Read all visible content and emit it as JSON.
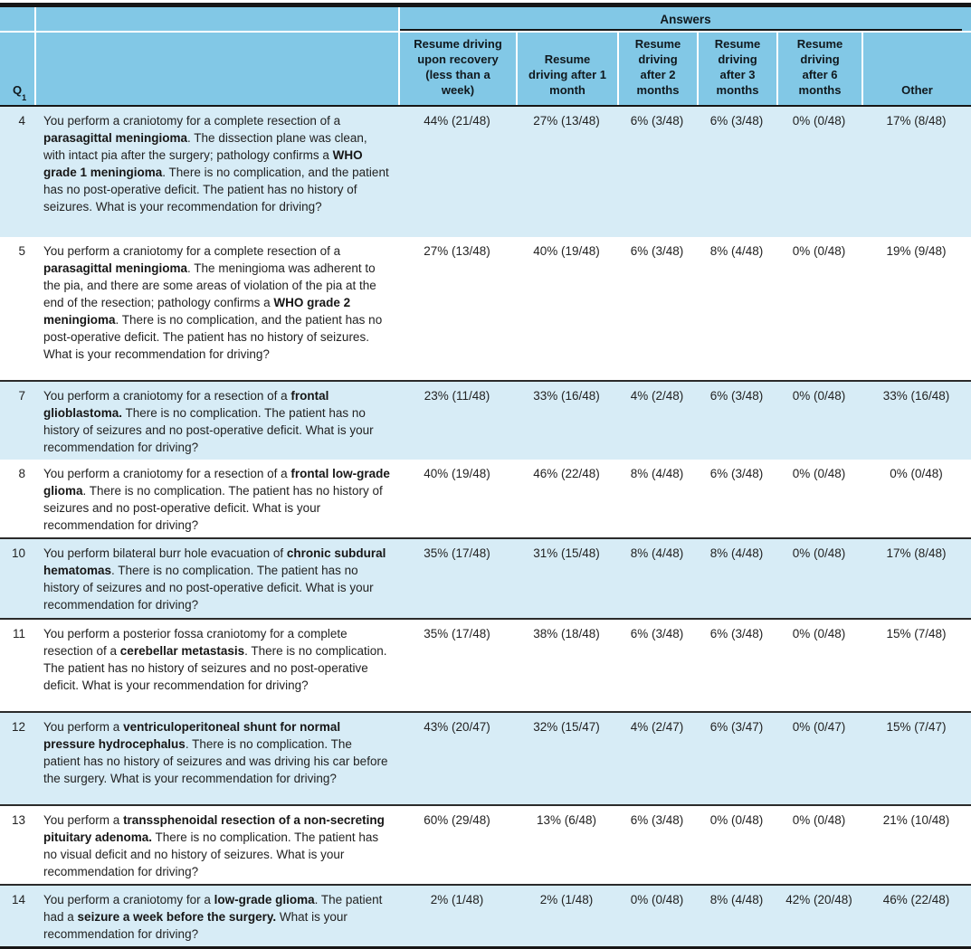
{
  "colors": {
    "header_blue": "#82c8e6",
    "row_blue": "#d7ecf6",
    "rule_dark": "#161616"
  },
  "table": {
    "answers_label": "Answers",
    "q_header": {
      "label": "Q",
      "sup": "1"
    },
    "columns": [
      "Resume driving upon recovery (less than a week)",
      "Resume driving after 1 month",
      "Resume driving after 2 months",
      "Resume driving after 3 months",
      "Resume driving after 6 months",
      "Other"
    ],
    "rows": [
      {
        "q": "4",
        "segments": [
          {
            "text": "You perform a craniotomy for a complete resection of a "
          },
          {
            "text": "parasagittal meningioma",
            "bold": true
          },
          {
            "text": ". The dissection plane was clean, with intact pia after the surgery; pathology confirms a "
          },
          {
            "text": "WHO grade 1 meningioma",
            "bold": true
          },
          {
            "text": ". There is no complication, and the patient has no post-operative deficit. The patient has no history of seizures. What is your recommendation for driving?"
          }
        ],
        "values": [
          "44% (21/48)",
          "27% (13/48)",
          "6% (3/48)",
          "6% (3/48)",
          "0% (0/48)",
          "17% (8/48)"
        ]
      },
      {
        "q": "5",
        "segments": [
          {
            "text": "You perform a craniotomy for a complete resection of a "
          },
          {
            "text": "parasagittal meningioma",
            "bold": true
          },
          {
            "text": ". The meningioma was adherent to the pia, and there are some areas of violation of the pia at the end of the resection; pathology confirms a "
          },
          {
            "text": "WHO grade 2 meningioma",
            "bold": true
          },
          {
            "text": ". There is no complication, and the patient has no post-operative deficit. The patient has no history of seizures. What is your recommendation for driving?"
          }
        ],
        "values": [
          "27% (13/48)",
          "40% (19/48)",
          "6% (3/48)",
          "8% (4/48)",
          "0% (0/48)",
          "19% (9/48)"
        ]
      },
      {
        "q": "7",
        "segments": [
          {
            "text": "You perform a craniotomy for a resection of a "
          },
          {
            "text": "frontal glioblastoma.",
            "bold": true
          },
          {
            "text": " There is no complication. The patient has no history of seizures and no post-operative deficit. What is your recommendation for driving?"
          }
        ],
        "values": [
          "23% (11/48)",
          "33% (16/48)",
          "4% (2/48)",
          "6% (3/48)",
          "0% (0/48)",
          "33% (16/48)"
        ]
      },
      {
        "q": "8",
        "segments": [
          {
            "text": "You perform a craniotomy for a resection of a "
          },
          {
            "text": "frontal low-grade glioma",
            "bold": true
          },
          {
            "text": ". There is no complication. The patient has no history of seizures and no post-operative deficit. What is your recommendation for driving?"
          }
        ],
        "values": [
          "40% (19/48)",
          "46% (22/48)",
          "8% (4/48)",
          "6% (3/48)",
          "0% (0/48)",
          "0% (0/48)"
        ]
      },
      {
        "q": "10",
        "segments": [
          {
            "text": "You perform bilateral burr hole evacuation of "
          },
          {
            "text": "chronic subdural hematomas",
            "bold": true
          },
          {
            "text": ". There is no complication. The patient has no history of seizures and no post-operative deficit. What is your recommendation for driving?"
          }
        ],
        "values": [
          "35% (17/48)",
          "31% (15/48)",
          "8% (4/48)",
          "8% (4/48)",
          "0% (0/48)",
          "17% (8/48)"
        ]
      },
      {
        "q": "11",
        "segments": [
          {
            "text": "You perform a posterior fossa craniotomy for a complete resection of a "
          },
          {
            "text": "cerebellar metastasis",
            "bold": true
          },
          {
            "text": ". There is no complication. The patient has no history of seizures and no post-operative deficit. What is your recommendation for driving?"
          }
        ],
        "values": [
          "35% (17/48)",
          "38% (18/48)",
          "6% (3/48)",
          "6% (3/48)",
          "0% (0/48)",
          "15% (7/48)"
        ]
      },
      {
        "q": "12",
        "segments": [
          {
            "text": "You perform a "
          },
          {
            "text": "ventriculoperitoneal shunt for normal pressure hydrocephalus",
            "bold": true
          },
          {
            "text": ". There is no complication. The patient has no history of seizures and was driving his car before the surgery. What is your recommendation for driving?"
          }
        ],
        "values": [
          "43% (20/47)",
          "32% (15/47)",
          "4% (2/47)",
          "6% (3/47)",
          "0% (0/47)",
          "15% (7/47)"
        ]
      },
      {
        "q": "13",
        "segments": [
          {
            "text": "You perform a "
          },
          {
            "text": "transsphenoidal resection of a non-secreting pituitary adenoma.",
            "bold": true
          },
          {
            "text": " There is no complication. The patient has no visual deficit and no history of seizures. What is your recommendation for driving?"
          }
        ],
        "values": [
          "60% (29/48)",
          "13% (6/48)",
          "6% (3/48)",
          "0% (0/48)",
          "0% (0/48)",
          "21% (10/48)"
        ]
      },
      {
        "q": "14",
        "segments": [
          {
            "text": "You perform a craniotomy for a "
          },
          {
            "text": "low-grade glioma",
            "bold": true
          },
          {
            "text": ". The patient had a "
          },
          {
            "text": "seizure a week before the surgery.",
            "bold": true
          },
          {
            "text": " What is your recommendation for driving?"
          }
        ],
        "values": [
          "2% (1/48)",
          "2% (1/48)",
          "0% (0/48)",
          "8% (4/48)",
          "42% (20/48)",
          "46% (22/48)"
        ]
      }
    ]
  }
}
